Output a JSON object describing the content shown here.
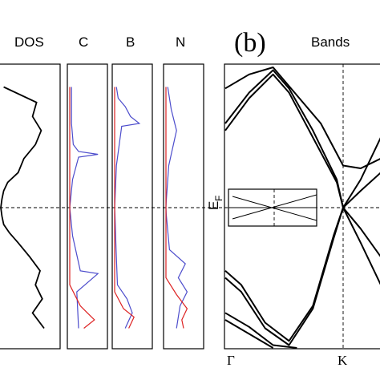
{
  "panel_label": "(b)",
  "fermi_label": "E",
  "fermi_subscript": "F",
  "chart_data": [
    {
      "type": "line",
      "title": "DOS",
      "xlabel": "",
      "ylabel": "",
      "grid": false,
      "series": [
        {
          "color": "#000000",
          "y": [
            0.86,
            0.75,
            0.65,
            0.55,
            0.45,
            0.35,
            0.25,
            0.18,
            0.12,
            0.06,
            0.0,
            -0.06,
            -0.12,
            -0.18,
            -0.25,
            -0.35,
            -0.45,
            -0.55,
            -0.65,
            -0.75,
            -0.86
          ],
          "x": [
            0.05,
            0.62,
            0.55,
            0.7,
            0.6,
            0.4,
            0.3,
            0.12,
            0.05,
            0.02,
            0.0,
            0.02,
            0.05,
            0.15,
            0.3,
            0.5,
            0.68,
            0.6,
            0.72,
            0.55,
            0.75
          ]
        }
      ]
    },
    {
      "type": "line",
      "title": "C",
      "grid": false,
      "series": [
        {
          "color": "#4d4dcc",
          "y": [
            0.86,
            0.6,
            0.45,
            0.4,
            0.38,
            0.36,
            0.2,
            0.05,
            0.0,
            -0.05,
            -0.2,
            -0.45,
            -0.47,
            -0.6,
            -0.86
          ],
          "x": [
            0.05,
            0.05,
            0.1,
            0.25,
            0.8,
            0.25,
            0.08,
            0.02,
            0.0,
            0.02,
            0.08,
            0.3,
            0.8,
            0.2,
            0.25
          ]
        },
        {
          "color": "#dd2222",
          "y": [
            0.86,
            0.55,
            -0.55,
            -0.7,
            -0.75,
            -0.8,
            -0.86
          ],
          "x": [
            0.0,
            0.0,
            0.0,
            0.3,
            0.5,
            0.7,
            0.4
          ]
        }
      ]
    },
    {
      "type": "line",
      "title": "B",
      "grid": false,
      "series": [
        {
          "color": "#4d4dcc",
          "y": [
            0.86,
            0.78,
            0.72,
            0.65,
            0.6,
            0.58,
            0.3,
            0.05,
            0.0,
            -0.05,
            -0.3,
            -0.55,
            -0.65,
            -0.75,
            -0.86
          ],
          "x": [
            0.05,
            0.1,
            0.3,
            0.45,
            0.7,
            0.2,
            0.05,
            0.01,
            0.0,
            0.01,
            0.04,
            0.08,
            0.35,
            0.5,
            0.3
          ]
        },
        {
          "color": "#dd2222",
          "y": [
            0.86,
            0.6,
            -0.6,
            -0.72,
            -0.78,
            -0.86
          ],
          "x": [
            0.0,
            0.0,
            0.0,
            0.25,
            0.55,
            0.4
          ]
        }
      ]
    },
    {
      "type": "line",
      "title": "N",
      "grid": false,
      "series": [
        {
          "color": "#4d4dcc",
          "y": [
            0.86,
            0.7,
            0.55,
            0.3,
            0.05,
            0.0,
            -0.05,
            -0.3,
            -0.4,
            -0.5,
            -0.6,
            -0.7,
            -0.86
          ],
          "x": [
            0.05,
            0.15,
            0.3,
            0.08,
            0.01,
            0.0,
            0.01,
            0.1,
            0.55,
            0.35,
            0.6,
            0.4,
            0.3
          ]
        },
        {
          "color": "#dd2222",
          "y": [
            0.86,
            0.5,
            -0.5,
            -0.62,
            -0.72,
            -0.8,
            -0.86
          ],
          "x": [
            0.0,
            0.0,
            0.0,
            0.3,
            0.6,
            0.45,
            0.5
          ]
        }
      ]
    },
    {
      "type": "line",
      "title": "Bands",
      "xlabel": "",
      "ylabel": "",
      "x_ticks": [
        "Γ",
        "K"
      ],
      "grid": false,
      "series": [
        {
          "color": "#000000",
          "points": [
            [
              0.0,
              0.85
            ],
            [
              0.15,
              0.95
            ],
            [
              0.3,
              1.0
            ],
            [
              0.45,
              0.8
            ],
            [
              0.6,
              0.6
            ],
            [
              0.74,
              0.3
            ],
            [
              0.85,
              0.28
            ],
            [
              1.0,
              0.35
            ]
          ]
        },
        {
          "color": "#000000",
          "points": [
            [
              0.0,
              0.6
            ],
            [
              0.15,
              0.82
            ],
            [
              0.3,
              0.98
            ],
            [
              0.4,
              0.85
            ],
            [
              0.55,
              0.55
            ],
            [
              0.7,
              0.2
            ],
            [
              0.74,
              0.0
            ]
          ]
        },
        {
          "color": "#000000",
          "points": [
            [
              0.0,
              0.55
            ],
            [
              0.15,
              0.78
            ],
            [
              0.3,
              0.95
            ],
            [
              0.4,
              0.82
            ],
            [
              0.55,
              0.5
            ],
            [
              0.7,
              0.18
            ],
            [
              0.74,
              0.0
            ]
          ]
        },
        {
          "color": "#000000",
          "points": [
            [
              0.74,
              0.0
            ],
            [
              0.85,
              0.12
            ],
            [
              1.0,
              0.25
            ]
          ]
        },
        {
          "color": "#000000",
          "points": [
            [
              0.74,
              0.0
            ],
            [
              0.85,
              0.2
            ],
            [
              1.0,
              0.5
            ]
          ]
        },
        {
          "color": "#000000",
          "points": [
            [
              0.0,
              -0.45
            ],
            [
              0.1,
              -0.55
            ],
            [
              0.25,
              -0.82
            ],
            [
              0.4,
              -0.95
            ],
            [
              0.55,
              -0.7
            ],
            [
              0.68,
              -0.2
            ],
            [
              0.74,
              0.0
            ]
          ]
        },
        {
          "color": "#000000",
          "points": [
            [
              0.0,
              -0.5
            ],
            [
              0.1,
              -0.6
            ],
            [
              0.25,
              -0.86
            ],
            [
              0.4,
              -0.98
            ],
            [
              0.55,
              -0.72
            ],
            [
              0.68,
              -0.22
            ],
            [
              0.74,
              0.0
            ]
          ]
        },
        {
          "color": "#000000",
          "points": [
            [
              0.74,
              0.0
            ],
            [
              0.85,
              -0.15
            ],
            [
              1.0,
              -0.35
            ]
          ]
        },
        {
          "color": "#000000",
          "points": [
            [
              0.74,
              0.0
            ],
            [
              0.85,
              -0.25
            ],
            [
              1.0,
              -0.55
            ]
          ]
        },
        {
          "color": "#000000",
          "points": [
            [
              0.0,
              -0.75
            ],
            [
              0.15,
              -0.85
            ],
            [
              0.3,
              -0.98
            ],
            [
              0.45,
              -1.0
            ]
          ]
        },
        {
          "color": "#000000",
          "points": [
            [
              0.0,
              -0.8
            ],
            [
              0.15,
              -0.9
            ],
            [
              0.3,
              -1.0
            ]
          ]
        }
      ]
    }
  ]
}
